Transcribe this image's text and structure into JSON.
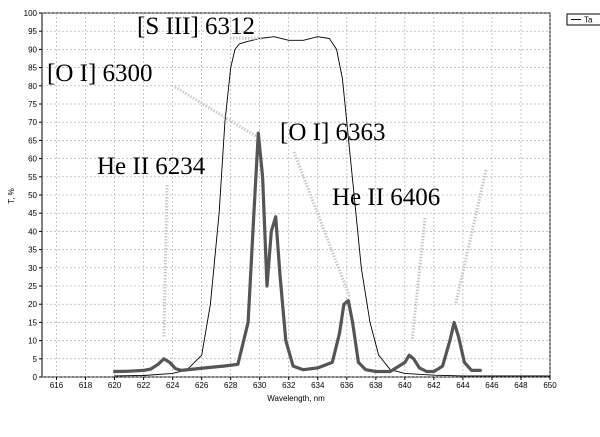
{
  "chart_data": {
    "type": "line",
    "xlabel": "Wavelength, nm",
    "ylabel": "T, %",
    "xlim": [
      615,
      650
    ],
    "ylim": [
      0,
      100
    ],
    "x_ticks": [
      616,
      618,
      620,
      622,
      624,
      626,
      628,
      630,
      632,
      634,
      636,
      638,
      640,
      642,
      644,
      646,
      648,
      650
    ],
    "y_ticks": [
      0,
      5,
      10,
      15,
      20,
      25,
      30,
      35,
      40,
      45,
      50,
      55,
      60,
      65,
      70,
      75,
      80,
      85,
      90,
      95,
      100
    ],
    "grid": true,
    "legend": {
      "position": "top-right",
      "label": "Ta"
    },
    "series": [
      {
        "name": "Ta",
        "style": "thin",
        "color": "#000000",
        "x": [
          620,
          622,
          624,
          625,
          626,
          626.6,
          627.2,
          627.6,
          628,
          628.3,
          628.6,
          629,
          630,
          631,
          632,
          633,
          634,
          634.8,
          635.3,
          635.7,
          636,
          636.5,
          637,
          637.6,
          638.2,
          639,
          640,
          642,
          644,
          646,
          648,
          650
        ],
        "y": [
          0.3,
          0.4,
          1,
          2,
          6,
          20,
          45,
          70,
          85,
          90,
          91.5,
          92,
          93,
          93.5,
          92.5,
          92.5,
          93.5,
          93,
          90,
          82,
          70,
          50,
          30,
          15,
          6,
          2,
          1,
          0.5,
          0.3,
          0.3,
          0.3,
          0.3
        ]
      },
      {
        "name": "",
        "style": "thick",
        "color": "#555555",
        "x": [
          620,
          621,
          622,
          622.5,
          623,
          623.4,
          623.8,
          624.2,
          624.6,
          625.5,
          626.5,
          627.5,
          628.5,
          629.2,
          629.6,
          629.9,
          630.2,
          630.5,
          630.8,
          631.1,
          631.4,
          631.8,
          632.3,
          633,
          634,
          635,
          635.5,
          635.8,
          636.1,
          636.4,
          636.8,
          637.3,
          638,
          639,
          640,
          640.3,
          640.6,
          641,
          641.5,
          642,
          642.6,
          643.1,
          643.4,
          643.7,
          644.1,
          644.6,
          645.2
        ],
        "y": [
          1.5,
          1.6,
          1.8,
          2.2,
          3.5,
          5,
          4,
          2.3,
          1.8,
          2.2,
          2.6,
          3,
          3.5,
          15,
          45,
          67,
          55,
          25,
          40,
          44,
          28,
          10,
          3,
          2,
          2.5,
          4,
          12,
          20,
          21,
          15,
          4,
          2,
          1.5,
          1.5,
          4,
          6,
          5,
          2.5,
          1.5,
          1.5,
          3,
          10,
          15,
          11,
          4,
          1.8,
          1.8
        ]
      }
    ],
    "annotations": [
      {
        "text": "[S III] 6312",
        "target": [
          630.2,
          93
        ]
      },
      {
        "text": "[O I] 6300",
        "target": [
          629.8,
          66
        ]
      },
      {
        "text": "[O I] 6363",
        "target": [
          636.2,
          22
        ]
      },
      {
        "text": "He II 6234",
        "target": [
          623.4,
          11
        ]
      },
      {
        "text": "He II 6406",
        "target": [
          640.5,
          10
        ]
      },
      {
        "text": "",
        "target": [
          643.5,
          20
        ]
      }
    ]
  }
}
